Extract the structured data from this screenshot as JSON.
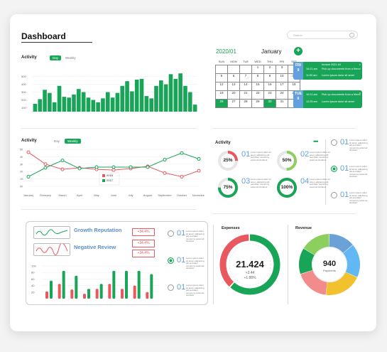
{
  "header": {
    "title": "Dashboard",
    "search_placeholder": "Search"
  },
  "colors": {
    "green": "#18a558",
    "red": "#e8585e",
    "blue": "#62a0de",
    "yellow": "#f2c12e",
    "gray": "#e6e6e6"
  },
  "activity_bars": {
    "label": "Activity",
    "tabs": [
      "Day",
      "Weekly"
    ],
    "active_tab": "Day",
    "y_ticks": [
      "500",
      "400",
      "300",
      "200",
      "100"
    ],
    "chart_data": {
      "type": "bar",
      "ylim": [
        50,
        560
      ],
      "values": [
        150,
        210,
        330,
        290,
        170,
        380,
        240,
        230,
        270,
        340,
        300,
        230,
        200,
        170,
        220,
        300,
        230,
        290,
        380,
        440,
        310,
        460,
        470,
        250,
        220,
        380,
        450,
        400,
        530,
        470,
        540,
        380,
        300,
        140
      ]
    }
  },
  "calendar": {
    "month_label": "2020/01",
    "month_name": "January",
    "weekdays": [
      "SUN",
      "MON",
      "TUE",
      "WED",
      "THU",
      "FRI",
      "SAT"
    ],
    "rows": [
      [
        "",
        "",
        "",
        "1",
        "2",
        "3",
        "4"
      ],
      [
        "5",
        "6",
        "7",
        "8",
        "9",
        "10",
        "11"
      ],
      [
        "12",
        "13",
        "14",
        "15",
        "16",
        "17",
        "18"
      ],
      [
        "19",
        "20",
        "21",
        "22",
        "23",
        "24",
        "25"
      ],
      [
        "26",
        "27",
        "28",
        "29",
        "30",
        "31",
        ""
      ]
    ],
    "highlight": [
      "26",
      "30"
    ],
    "events": [
      {
        "day": "FRI",
        "num": "9",
        "header": "Invoice 2021 #4",
        "items": [
          {
            "time": "10:21 am",
            "text": "Pick up documents from a friend"
          },
          {
            "time": "11:50 am",
            "text": "Lorem ipsum dolor sit amet"
          }
        ]
      },
      {
        "day": "TUE",
        "num": "6",
        "header": "",
        "items": [
          {
            "time": "10:21 am",
            "text": "Pick up documents from a friend"
          },
          {
            "time": "12:25 am",
            "text": "Lorem ipsum dolor sit amet"
          }
        ]
      }
    ]
  },
  "activity_lines": {
    "label": "Activity",
    "tabs": [
      "Day",
      "Weekly"
    ],
    "active_tab": "Weekly",
    "y_ticks": [
      "5K",
      "4K",
      "3K",
      "2K",
      "1K",
      "0K"
    ],
    "months": [
      "January",
      "February",
      "March",
      "April",
      "May",
      "June",
      "July",
      "August",
      "September",
      "October",
      "November"
    ],
    "chart_data": {
      "type": "line",
      "ylim": [
        0,
        5
      ],
      "series": [
        {
          "name": "2018",
          "color": "#e8585e",
          "values": [
            4.6,
            3.0,
            2.3,
            2.5,
            2.3,
            2.2,
            2.4,
            2.7,
            1.8,
            1.3,
            2.1
          ]
        },
        {
          "name": "2017",
          "color": "#18a558",
          "values": [
            1.3,
            2.5,
            3.5,
            2.4,
            2.6,
            2.6,
            2.6,
            2.6,
            3.6,
            4.5,
            3.7
          ]
        }
      ]
    }
  },
  "activity_gauges": {
    "label": "Activity",
    "menu": "•••",
    "items": [
      {
        "percent": "25%",
        "num": "01",
        "value": 25,
        "color": "#e8585e"
      },
      {
        "percent": "50%",
        "num": "02",
        "value": 50,
        "color": "#8ccf5e"
      },
      {
        "percent": "75%",
        "num": "03",
        "value": 75,
        "color": "#18a558"
      },
      {
        "percent": "100%",
        "num": "04",
        "value": 100,
        "color": "#18a558"
      }
    ],
    "lorem": "Lorem ipsum dolor sit amet, adipiscing elit sed diam nonummy euismod tincidunt"
  },
  "radio_list_right": {
    "items": [
      {
        "num": "01",
        "selected": false
      },
      {
        "num": "01",
        "selected": true
      },
      {
        "num": "01",
        "selected": false
      }
    ]
  },
  "reputation": {
    "rows": [
      {
        "label": "Growth Reputation",
        "tag": "+34.4%"
      },
      {
        "label": "Negative Review",
        "tag": "+34.4%"
      }
    ],
    "extra_tag": "+34.4%",
    "y_ticks": [
      "100",
      "80",
      "60",
      "40",
      "20"
    ],
    "chart_data": {
      "type": "bar",
      "ylim": [
        0,
        100
      ],
      "series": [
        {
          "name": "red",
          "values": [
            22,
            45,
            28,
            15,
            30,
            45,
            30,
            40,
            20
          ]
        },
        {
          "name": "green",
          "values": [
            55,
            85,
            70,
            30,
            45,
            85,
            85,
            85,
            75
          ]
        }
      ]
    }
  },
  "radio_list_mid": {
    "items": [
      {
        "num": "01",
        "selected": false
      },
      {
        "num": "01",
        "selected": true
      },
      {
        "num": "01",
        "selected": false
      }
    ]
  },
  "expenses": {
    "label": "Expenses",
    "value": "21.424",
    "sub1": "+3.44",
    "sub2": "+1.88%",
    "chart_data": {
      "type": "pie",
      "values": [
        {
          "label": "green",
          "value": 62,
          "color": "#18a558"
        },
        {
          "label": "red",
          "value": 38,
          "color": "#e8585e"
        }
      ]
    }
  },
  "revenue": {
    "label": "Revenue",
    "value": "940",
    "sub": "Payments",
    "chart_data": {
      "type": "pie",
      "values": [
        {
          "label": "a",
          "value": 14,
          "color": "#6aa2d8"
        },
        {
          "label": "b",
          "value": 18,
          "color": "#62b8f2"
        },
        {
          "label": "c",
          "value": 20,
          "color": "#f2c12e"
        },
        {
          "label": "d",
          "value": 18,
          "color": "#f28b8b"
        },
        {
          "label": "e",
          "value": 14,
          "color": "#18a558"
        },
        {
          "label": "f",
          "value": 16,
          "color": "#8ccf5e"
        }
      ]
    }
  }
}
